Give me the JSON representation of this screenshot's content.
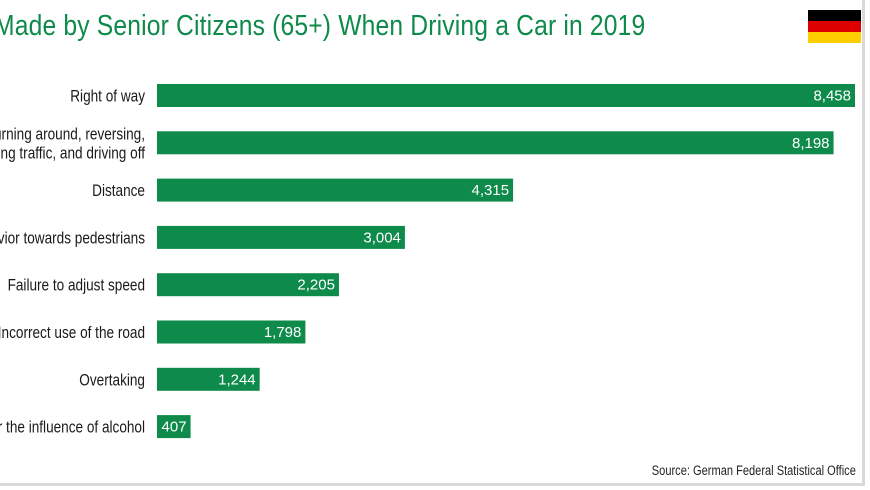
{
  "chart_data": {
    "type": "bar",
    "orientation": "horizontal",
    "title": "Made by Senior Citizens (65+) When Driving a Car in 2019",
    "categories": [
      "Right of way",
      [
        "urning around, reversing,",
        "ng traffic, and driving off"
      ],
      "Distance",
      "avior towards pedestrians",
      "Failure to adjust speed",
      "Incorrect use of the road",
      "Overtaking",
      "r the influence of alcohol"
    ],
    "values": [
      8458,
      8198,
      4315,
      3004,
      2205,
      1798,
      1244,
      407
    ],
    "value_labels": [
      "8,458",
      "8,198",
      "4,315",
      "3,004",
      "2,205",
      "1,798",
      "1,244",
      "407"
    ],
    "xlim": [
      0,
      8458
    ],
    "xlabel": "",
    "ylabel": "",
    "grid": false,
    "legend": "none"
  },
  "source": "Source: German Federal Statistical Office",
  "flag_icon": "germany-flag-icon",
  "colors": {
    "bar": "#0e8a4a",
    "title": "#0e8a4a",
    "flag_black": "#000000",
    "flag_red": "#dd0000",
    "flag_gold": "#ffce00"
  }
}
